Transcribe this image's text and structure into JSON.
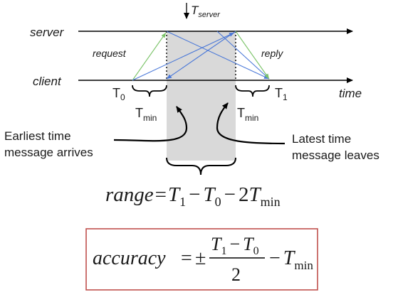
{
  "timeline": {
    "server_label": "server",
    "client_label": "client",
    "time_axis_label": "time",
    "t_server": {
      "base": "T",
      "sub": "server"
    }
  },
  "arrows": {
    "request_label": "request",
    "reply_label": "reply"
  },
  "markers": {
    "t0": {
      "base": "T",
      "sub": "0"
    },
    "t1": {
      "base": "T",
      "sub": "1"
    },
    "tmin_left": {
      "base": "T",
      "sub": "min"
    },
    "tmin_right": {
      "base": "T",
      "sub": "min"
    }
  },
  "callouts": {
    "earliest_line1": "Earliest time",
    "earliest_line2": "message arrives",
    "latest_line1": "Latest time",
    "latest_line2": "message leaves"
  },
  "range_formula": {
    "lhs": "range",
    "eq": "=",
    "t1": {
      "base": "T",
      "sub": "1"
    },
    "minus1": "−",
    "t0": {
      "base": "T",
      "sub": "0"
    },
    "minus2": "−",
    "coef": "2",
    "tmin": {
      "base": "T",
      "sub": "min"
    }
  },
  "accuracy_formula": {
    "lhs": "accuracy",
    "eq": "=",
    "pm": "±",
    "num_t1": {
      "base": "T",
      "sub": "1"
    },
    "num_minus": "−",
    "num_t0": {
      "base": "T",
      "sub": "0"
    },
    "denominator": "2",
    "minus": "−",
    "tmin": {
      "base": "T",
      "sub": "min"
    }
  },
  "colors": {
    "line": "#000000",
    "request_arrow": "#7cc46a",
    "reply_arrow": "#4a78d8",
    "shaded_region": "#d9d9d9",
    "accuracy_box_border": "#c0504d"
  }
}
